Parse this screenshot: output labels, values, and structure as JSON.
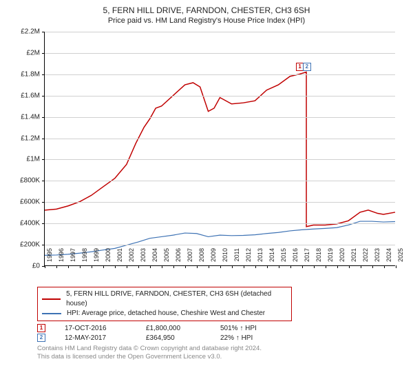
{
  "title": "5, FERN HILL DRIVE, FARNDON, CHESTER, CH3 6SH",
  "subtitle": "Price paid vs. HM Land Registry's House Price Index (HPI)",
  "chart": {
    "type": "line",
    "background_color": "#ffffff",
    "grid_color": "#d0d0d0",
    "axis_color": "#000000",
    "tick_fontsize": 10,
    "xlim": [
      1995,
      2025
    ],
    "ylim": [
      0,
      2200000
    ],
    "yticks": [
      0,
      200000,
      400000,
      600000,
      800000,
      1000000,
      1200000,
      1400000,
      1600000,
      1800000,
      2000000,
      2200000
    ],
    "ytick_labels": [
      "£0",
      "£200K",
      "£400K",
      "£600K",
      "£800K",
      "£1M",
      "£1.2M",
      "£1.4M",
      "£1.6M",
      "£1.8M",
      "£2M",
      "£2.2M"
    ],
    "xticks": [
      1995,
      1996,
      1997,
      1998,
      1999,
      2000,
      2001,
      2002,
      2003,
      2004,
      2005,
      2006,
      2007,
      2008,
      2009,
      2010,
      2011,
      2012,
      2013,
      2014,
      2015,
      2016,
      2017,
      2018,
      2019,
      2020,
      2021,
      2022,
      2023,
      2024,
      2025
    ],
    "series": [
      {
        "name": "price_paid",
        "label": "5, FERN HILL DRIVE, FARNDON, CHESTER, CH3 6SH (detached house)",
        "color": "#c00000",
        "line_width": 1.5,
        "x": [
          1995,
          1996,
          1997,
          1998,
          1999,
          2000,
          2001,
          2002,
          2002.8,
          2003.5,
          2004,
          2004.5,
          2005,
          2006,
          2007,
          2007.7,
          2008.3,
          2009,
          2009.5,
          2010,
          2011,
          2012,
          2013,
          2014,
          2015,
          2016,
          2016.8,
          2017.4,
          2017.4,
          2018,
          2019,
          2020,
          2021,
          2022,
          2022.7,
          2023.5,
          2024,
          2025
        ],
        "y": [
          520000,
          530000,
          560000,
          600000,
          660000,
          740000,
          820000,
          950000,
          1150000,
          1300000,
          1380000,
          1480000,
          1500000,
          1600000,
          1700000,
          1720000,
          1680000,
          1450000,
          1480000,
          1580000,
          1520000,
          1530000,
          1550000,
          1650000,
          1700000,
          1780000,
          1800000,
          1820000,
          364950,
          380000,
          380000,
          390000,
          420000,
          500000,
          520000,
          490000,
          480000,
          500000
        ]
      },
      {
        "name": "hpi",
        "label": "HPI: Average price, detached house, Cheshire West and Chester",
        "color": "#3d72b4",
        "line_width": 1.2,
        "x": [
          1995,
          1996,
          1997,
          1998,
          1999,
          2000,
          2001,
          2002,
          2003,
          2004,
          2005,
          2006,
          2007,
          2008,
          2009,
          2010,
          2011,
          2012,
          2013,
          2014,
          2015,
          2016,
          2017,
          2018,
          2019,
          2020,
          2021,
          2022,
          2023,
          2024,
          2025
        ],
        "y": [
          95000,
          98000,
          105000,
          115000,
          128000,
          145000,
          160000,
          190000,
          220000,
          255000,
          270000,
          285000,
          305000,
          300000,
          270000,
          285000,
          280000,
          282000,
          288000,
          300000,
          310000,
          325000,
          335000,
          342000,
          348000,
          355000,
          380000,
          415000,
          415000,
          408000,
          412000
        ]
      }
    ],
    "markers": [
      {
        "n": "1",
        "color": "#c00000",
        "x": 2016.8,
        "y": 1870000
      },
      {
        "n": "2",
        "color": "#3d72b4",
        "x": 2017.4,
        "y": 1870000
      }
    ]
  },
  "legend": {
    "border_color": "#c00000",
    "rows": [
      {
        "color": "#c00000",
        "label": "5, FERN HILL DRIVE, FARNDON, CHESTER, CH3 6SH (detached house)"
      },
      {
        "color": "#3d72b4",
        "label": "HPI: Average price, detached house, Cheshire West and Chester"
      }
    ]
  },
  "sales": [
    {
      "n": "1",
      "color": "#c00000",
      "date": "17-OCT-2016",
      "price": "£1,800,000",
      "pct": "501% ↑ HPI"
    },
    {
      "n": "2",
      "color": "#3d72b4",
      "date": "12-MAY-2017",
      "price": "£364,950",
      "pct": "22% ↑ HPI"
    }
  ],
  "footer": {
    "line1": "Contains HM Land Registry data © Crown copyright and database right 2024.",
    "line2": "This data is licensed under the Open Government Licence v3.0."
  }
}
